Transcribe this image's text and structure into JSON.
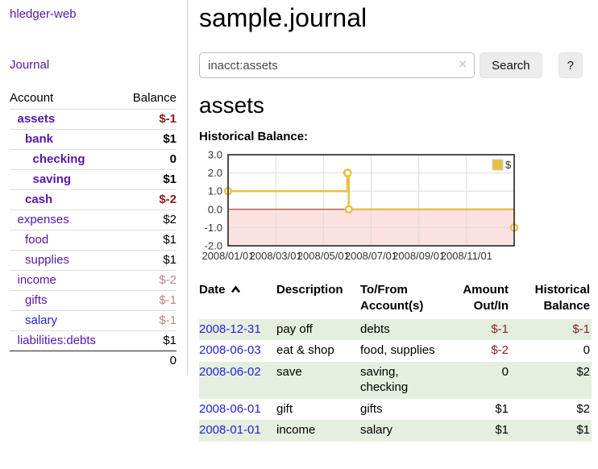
{
  "colors": {
    "link_purple": "#5816a8",
    "link_blue": "#2525d6",
    "negative_strong": "#8c1a1a",
    "negative_weak": "#c08484",
    "table_stripe_green": "#e4efdf",
    "series_gold": "#e9c044"
  },
  "sidebar": {
    "app_title": "hledger-web",
    "journal_label": "Journal",
    "accounts": {
      "header_account": "Account",
      "header_balance": "Balance",
      "rows": [
        {
          "name": "assets",
          "balance": "$-1",
          "indent": 1,
          "bold": true,
          "link": "purple",
          "bal": "neg-strong"
        },
        {
          "name": "bank",
          "balance": "$1",
          "indent": 2,
          "bold": true,
          "link": "purple",
          "bal": ""
        },
        {
          "name": "checking",
          "balance": "0",
          "indent": 3,
          "bold": true,
          "link": "purple",
          "bal": ""
        },
        {
          "name": "saving",
          "balance": "$1",
          "indent": 3,
          "bold": true,
          "link": "purple",
          "bal": ""
        },
        {
          "name": "cash",
          "balance": "$-2",
          "indent": 2,
          "bold": true,
          "link": "purple",
          "bal": "neg-strong"
        },
        {
          "name": "expenses",
          "balance": "$2",
          "indent": 1,
          "bold": false,
          "link": "purple",
          "bal": ""
        },
        {
          "name": "food",
          "balance": "$1",
          "indent": 2,
          "bold": false,
          "link": "purple",
          "bal": ""
        },
        {
          "name": "supplies",
          "balance": "$1",
          "indent": 2,
          "bold": false,
          "link": "purple",
          "bal": ""
        },
        {
          "name": "income",
          "balance": "$-2",
          "indent": 1,
          "bold": false,
          "link": "purple",
          "bal": "neg-weak"
        },
        {
          "name": "gifts",
          "balance": "$-1",
          "indent": 2,
          "bold": false,
          "link": "purple",
          "bal": "neg-weak"
        },
        {
          "name": "salary",
          "balance": "$-1",
          "indent": 2,
          "bold": false,
          "link": "blue",
          "bal": "neg-weak"
        },
        {
          "name": "liabilities:debts",
          "balance": "$1",
          "indent": 1,
          "bold": false,
          "link": "purple",
          "bal": ""
        }
      ],
      "total": "0"
    }
  },
  "main": {
    "title": "sample.journal",
    "search": {
      "value": "inacct:assets",
      "clear_icon": "×",
      "button_label": "Search",
      "help_label": "?"
    },
    "account_heading": "assets",
    "register": {
      "headers": [
        "Date",
        "Description",
        "To/From Account(s)",
        "Amount Out/In",
        "Historical Balance"
      ],
      "sort_icon": "ascending-caret",
      "rows": [
        {
          "date": "2008-12-31",
          "description": "pay off",
          "accounts": "debts",
          "amount": "$-1",
          "amount_neg": true,
          "balance": "$-1",
          "balance_neg": true
        },
        {
          "date": "2008-06-03",
          "description": "eat & shop",
          "accounts": "food, supplies",
          "amount": "$-2",
          "amount_neg": true,
          "balance": "0",
          "balance_neg": false
        },
        {
          "date": "2008-06-02",
          "description": "save",
          "accounts": "saving, checking",
          "amount": "0",
          "amount_neg": false,
          "balance": "$2",
          "balance_neg": false
        },
        {
          "date": "2008-06-01",
          "description": "gift",
          "accounts": "gifts",
          "amount": "$1",
          "amount_neg": false,
          "balance": "$2",
          "balance_neg": false
        },
        {
          "date": "2008-01-01",
          "description": "income",
          "accounts": "salary",
          "amount": "$1",
          "amount_neg": false,
          "balance": "$1",
          "balance_neg": false
        }
      ]
    }
  },
  "chart_data": {
    "type": "line",
    "title": "Historical Balance:",
    "ylim": [
      -2,
      3
    ],
    "xlim_months": [
      0,
      12
    ],
    "x_ticks": [
      {
        "m": 0,
        "label": "2008/01/01"
      },
      {
        "m": 2,
        "label": "2008/03/01"
      },
      {
        "m": 4,
        "label": "2008/05/01"
      },
      {
        "m": 6,
        "label": "2008/07/01"
      },
      {
        "m": 8,
        "label": "2008/09/01"
      },
      {
        "m": 10,
        "label": "2008/11/01"
      }
    ],
    "y_ticks": [
      {
        "v": 3,
        "label": "3.0"
      },
      {
        "v": 2,
        "label": "2.0"
      },
      {
        "v": 1,
        "label": "1.0"
      },
      {
        "v": 0,
        "label": "0.0"
      },
      {
        "v": -1,
        "label": "-1.0"
      },
      {
        "v": -2,
        "label": "-2.0"
      }
    ],
    "series": [
      {
        "name": "$",
        "color": "#e9c044",
        "marker_fill": "#ffffff",
        "step": true,
        "points": [
          {
            "date": "2008-01-01",
            "m": 0,
            "v": 1
          },
          {
            "date": "2008-06-01",
            "m": 5.0,
            "v": 2
          },
          {
            "date": "2008-06-02",
            "m": 5.02,
            "v": 2
          },
          {
            "date": "2008-06-03",
            "m": 5.06,
            "v": 0
          },
          {
            "date": "2008-12-31",
            "m": 12,
            "v": -1
          }
        ]
      }
    ],
    "legend": {
      "label": "$",
      "position": "top-right"
    },
    "grid": {
      "color": "#dcdcdc",
      "border_color": "#4d4d4d",
      "negative_fill": "#fce1e1",
      "zero_line_color": "#a01818",
      "tick_label_color": "#333333"
    }
  }
}
